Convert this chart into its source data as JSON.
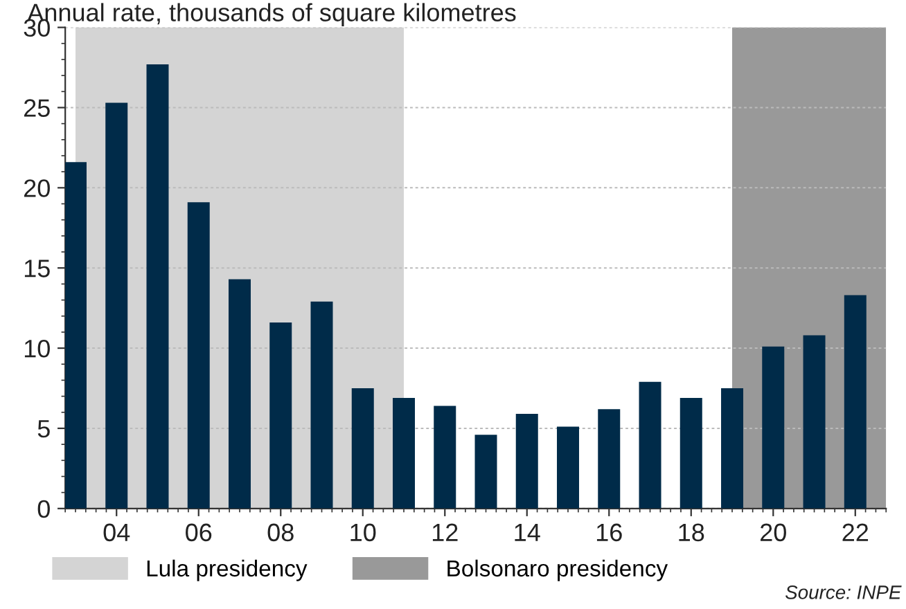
{
  "chart_data": {
    "type": "bar",
    "title": "Annual rate, thousands of square kilometres",
    "x": [
      2003,
      2004,
      2005,
      2006,
      2007,
      2008,
      2009,
      2010,
      2011,
      2012,
      2013,
      2014,
      2015,
      2016,
      2017,
      2018,
      2019,
      2020,
      2021,
      2022
    ],
    "series": [
      {
        "color": "#002b49",
        "values": [
          21.6,
          25.3,
          27.7,
          19.1,
          14.3,
          11.6,
          12.9,
          7.5,
          6.9,
          6.4,
          4.6,
          5.9,
          5.1,
          6.2,
          7.9,
          6.9,
          7.5,
          10.1,
          10.8,
          13.3
        ]
      }
    ],
    "xlim": [
      2002.75,
      2022.75
    ],
    "xticks": [
      {
        "value": 2004,
        "label": "04"
      },
      {
        "value": 2006,
        "label": "06"
      },
      {
        "value": 2008,
        "label": "08"
      },
      {
        "value": 2010,
        "label": "10"
      },
      {
        "value": 2012,
        "label": "12"
      },
      {
        "value": 2014,
        "label": "14"
      },
      {
        "value": 2016,
        "label": "16"
      },
      {
        "value": 2018,
        "label": "18"
      },
      {
        "value": 2020,
        "label": "20"
      },
      {
        "value": 2022,
        "label": "22"
      }
    ],
    "ylim": [
      0,
      30
    ],
    "yticks": [
      0,
      5,
      10,
      15,
      20,
      25,
      30
    ],
    "bands": [
      {
        "axis": "x",
        "from": 2003,
        "to": 2011,
        "label": "Lula presidency",
        "color": "#d4d4d4"
      },
      {
        "axis": "x",
        "from": 2019,
        "to": 2022.75,
        "label": "Bolsonaro presidency",
        "color": "#999999"
      }
    ],
    "grid": "y",
    "legend": "bottom",
    "annotations": [
      "Source: INPE"
    ]
  }
}
